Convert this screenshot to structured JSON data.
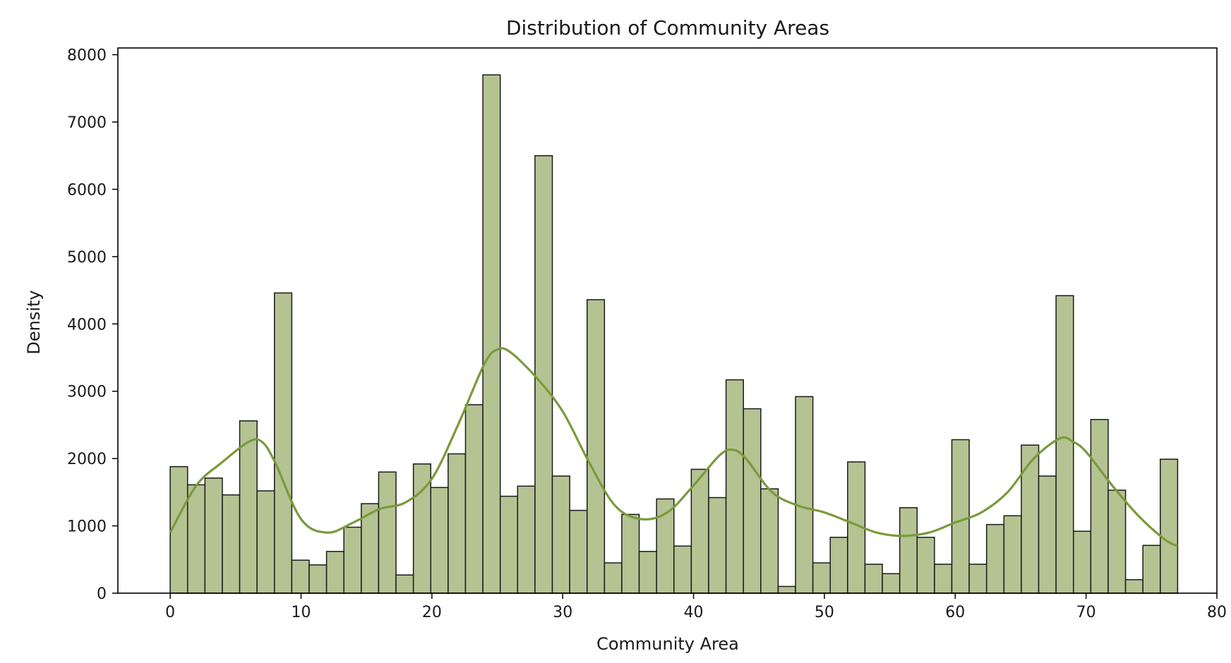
{
  "chart_data": {
    "type": "bar",
    "title": "Distribution of Community Areas",
    "xlabel": "Community Area",
    "ylabel": "Density",
    "xlim": [
      -4,
      80
    ],
    "ylim": [
      0,
      8100
    ],
    "xticks": [
      0,
      10,
      20,
      30,
      40,
      50,
      60,
      70,
      80
    ],
    "yticks": [
      0,
      1000,
      2000,
      3000,
      4000,
      5000,
      6000,
      7000,
      8000
    ],
    "grid": false,
    "bin_start": 0,
    "bin_width": 1.3276,
    "values": [
      1880,
      1610,
      1710,
      1460,
      2560,
      1520,
      4460,
      490,
      420,
      620,
      980,
      1330,
      1800,
      270,
      1920,
      1570,
      2070,
      2800,
      7700,
      1440,
      1590,
      6500,
      1740,
      1230,
      4360,
      450,
      1170,
      620,
      1400,
      700,
      1840,
      1420,
      3170,
      2740,
      1550,
      100,
      2920,
      450,
      830,
      1950,
      430,
      290,
      1270,
      830,
      430,
      2280,
      430,
      1020,
      1150,
      2200,
      1740,
      4420,
      920,
      2580,
      1530,
      200,
      710,
      1990
    ],
    "kde": {
      "x": [
        0,
        2,
        4,
        6,
        7,
        8,
        10,
        12,
        14,
        16,
        18,
        20,
        22,
        24,
        25,
        26,
        28,
        30,
        32,
        34,
        36,
        38,
        40,
        42,
        43,
        44,
        46,
        48,
        50,
        52,
        54,
        56,
        58,
        60,
        62,
        64,
        66,
        68,
        69,
        70,
        72,
        74,
        76,
        77
      ],
      "y": [
        900,
        1600,
        1950,
        2250,
        2250,
        1950,
        1100,
        900,
        1050,
        1250,
        1350,
        1700,
        2500,
        3400,
        3620,
        3580,
        3200,
        2700,
        1950,
        1300,
        1100,
        1200,
        1600,
        2050,
        2130,
        2000,
        1500,
        1300,
        1200,
        1050,
        900,
        850,
        900,
        1050,
        1200,
        1500,
        2000,
        2300,
        2250,
        2100,
        1600,
        1150,
        800,
        700
      ]
    },
    "colors": {
      "bar_fill": "#b5c393",
      "bar_edge": "#1a1a1a",
      "kde_line": "#7a9a3a"
    }
  }
}
